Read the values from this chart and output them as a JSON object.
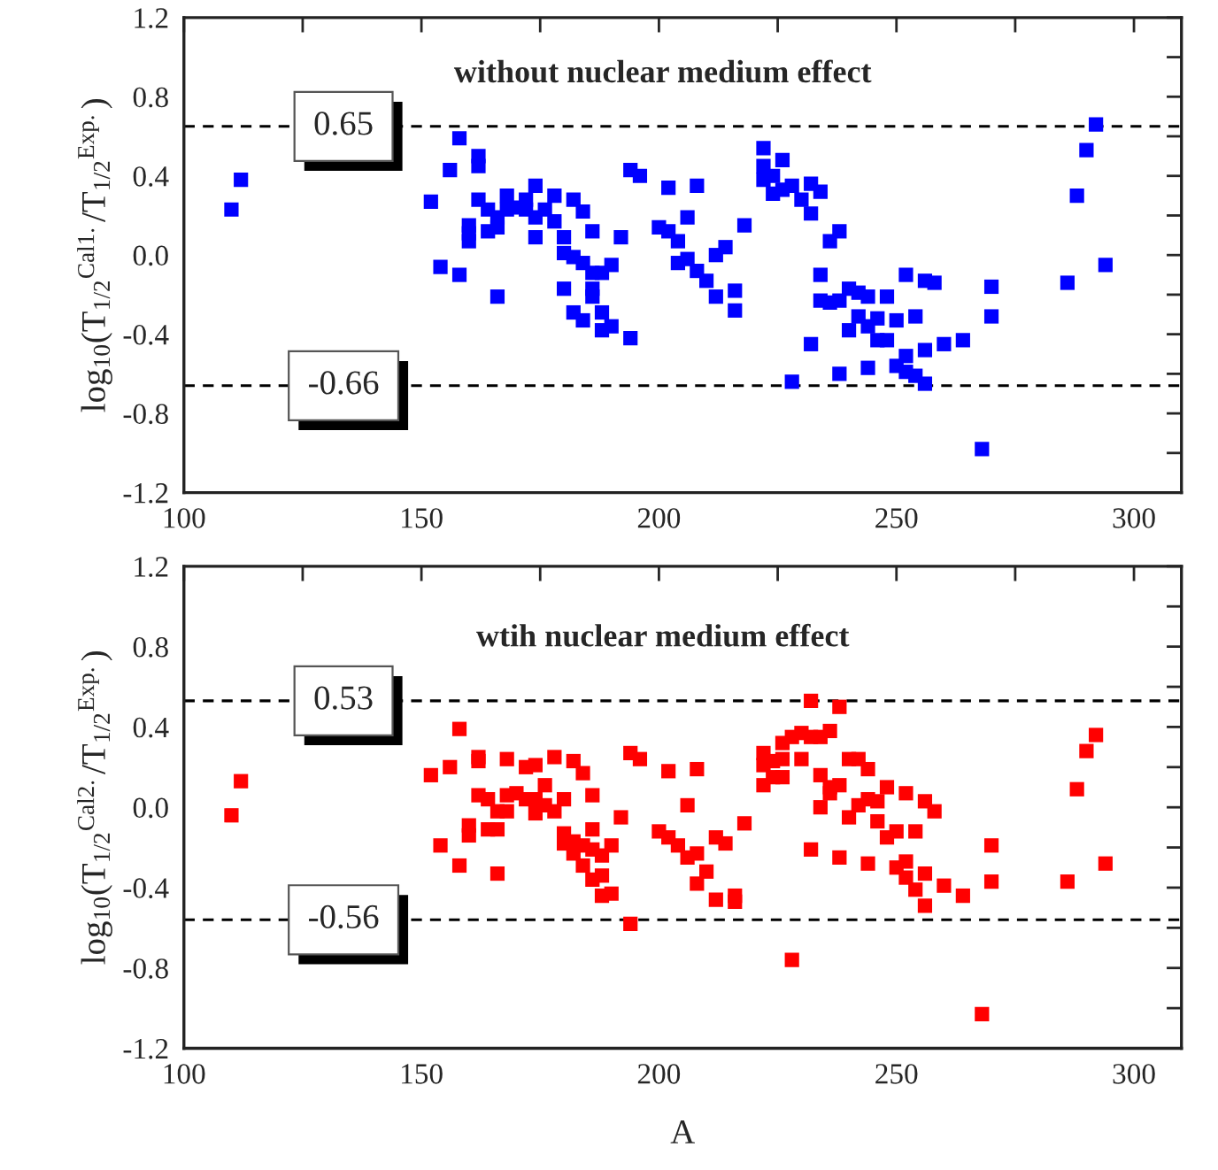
{
  "chart_data": [
    {
      "type": "scatter",
      "title": "without nuclear medium effect",
      "ylabel": "log$_{10}$(T$_{1/2}$$^{Cal1.}$/T$_{1/2}$$^{Exp.}$)",
      "marker": "square",
      "xlim": [
        100,
        310
      ],
      "xticks": [
        100,
        {
          "value": 125,
          "label": null
        },
        150,
        {
          "value": 175,
          "label": null
        },
        200,
        {
          "value": 225,
          "label": null
        },
        250,
        {
          "value": 275,
          "label": null
        },
        300
      ],
      "ylim": [
        -1.2,
        1.2
      ],
      "yticks": [
        -1.2,
        {
          "value": -1.0,
          "label": null
        },
        -0.8,
        {
          "value": -0.6,
          "label": null
        },
        -0.4,
        {
          "value": -0.2,
          "label": null
        },
        {
          "value": 0,
          "label": "0.0"
        },
        {
          "value": 0.2,
          "label": null
        },
        0.4,
        {
          "value": 0.6,
          "label": null
        },
        0.8,
        {
          "value": 1.0,
          "label": null
        },
        1.2
      ],
      "ref_lines": [
        {
          "axis": "y",
          "value": 0.65,
          "label": "0.65",
          "color": "#000000",
          "line_style": "dashed"
        },
        {
          "axis": "y",
          "value": -0.66,
          "label": "-0.66",
          "color": "#000000",
          "line_style": "dashed"
        }
      ],
      "series": [
        {
          "color": "#0000ff",
          "x": [
            110,
            112,
            152,
            154,
            156,
            158,
            158,
            162,
            162,
            162,
            160,
            160,
            160,
            164,
            164,
            166,
            166,
            166,
            168,
            168,
            170,
            172,
            172,
            174,
            174,
            174,
            176,
            178,
            178,
            180,
            180,
            180,
            182,
            182,
            182,
            184,
            184,
            184,
            186,
            186,
            186,
            186,
            188,
            188,
            188,
            190,
            190,
            192,
            194,
            194,
            196,
            200,
            202,
            202,
            204,
            204,
            206,
            206,
            208,
            208,
            210,
            212,
            212,
            214,
            216,
            216,
            218,
            222,
            222,
            222,
            224,
            224,
            226,
            226,
            228,
            230,
            232,
            232,
            234,
            236,
            238,
            234,
            234,
            236,
            238,
            240,
            242,
            242,
            244,
            244,
            246,
            246,
            248,
            248,
            250,
            240,
            232,
            228,
            238,
            244,
            252,
            254,
            250,
            252,
            252,
            254,
            256,
            258,
            256,
            256,
            260,
            264,
            268,
            270,
            270,
            286,
            288,
            290,
            292,
            294
          ],
          "values": [
            0.23,
            0.38,
            0.27,
            -0.06,
            0.43,
            0.59,
            -0.1,
            0.5,
            0.45,
            0.28,
            0.15,
            0.11,
            0.07,
            0.23,
            0.12,
            -0.21,
            0.14,
            0.19,
            0.3,
            0.23,
            0.24,
            0.28,
            0.23,
            0.35,
            0.19,
            0.09,
            0.23,
            0.3,
            0.17,
            0.09,
            0.01,
            -0.17,
            0.28,
            -0.01,
            -0.29,
            0.22,
            -0.04,
            -0.33,
            0.12,
            -0.09,
            -0.17,
            -0.21,
            -0.09,
            -0.29,
            -0.38,
            -0.05,
            -0.36,
            0.09,
            0.43,
            -0.42,
            0.4,
            0.14,
            0.34,
            0.12,
            0.07,
            -0.04,
            0.19,
            -0.02,
            0.35,
            -0.08,
            -0.13,
            0.0,
            -0.21,
            0.04,
            -0.18,
            -0.28,
            0.15,
            0.54,
            0.45,
            0.38,
            0.4,
            0.31,
            0.48,
            0.33,
            0.35,
            0.28,
            0.36,
            0.21,
            0.32,
            0.07,
            0.12,
            -0.1,
            -0.23,
            -0.24,
            -0.23,
            -0.17,
            -0.19,
            -0.31,
            -0.21,
            -0.36,
            -0.32,
            -0.43,
            -0.21,
            -0.43,
            -0.33,
            -0.38,
            -0.45,
            -0.64,
            -0.6,
            -0.57,
            -0.1,
            -0.31,
            -0.56,
            -0.51,
            -0.59,
            -0.61,
            -0.13,
            -0.14,
            -0.48,
            -0.65,
            -0.45,
            -0.43,
            -0.98,
            -0.16,
            -0.31,
            -0.14,
            0.3,
            0.53,
            0.66,
            -0.05
          ]
        }
      ]
    },
    {
      "type": "scatter",
      "title": "wtih nuclear medium effect",
      "xlabel": "A",
      "ylabel": "log$_{10}$(T$_{1/2}$$^{Cal2.}$/T$_{1/2}$$^{Exp.}$)",
      "marker": "square",
      "xlim": [
        100,
        310
      ],
      "xticks": [
        100,
        {
          "value": 125,
          "label": null
        },
        150,
        {
          "value": 175,
          "label": null
        },
        200,
        {
          "value": 225,
          "label": null
        },
        250,
        {
          "value": 275,
          "label": null
        },
        300
      ],
      "ylim": [
        -1.2,
        1.2
      ],
      "yticks": [
        -1.2,
        {
          "value": -1.0,
          "label": null
        },
        -0.8,
        {
          "value": -0.6,
          "label": null
        },
        -0.4,
        {
          "value": -0.2,
          "label": null
        },
        {
          "value": 0,
          "label": "0.0"
        },
        {
          "value": 0.2,
          "label": null
        },
        0.4,
        {
          "value": 0.6,
          "label": null
        },
        0.8,
        {
          "value": 1.0,
          "label": null
        },
        1.2
      ],
      "ref_lines": [
        {
          "axis": "y",
          "value": 0.53,
          "label": "0.53",
          "color": "#000000",
          "line_style": "dashed"
        },
        {
          "axis": "y",
          "value": -0.56,
          "label": "-0.56",
          "color": "#000000",
          "line_style": "dashed"
        }
      ],
      "series": [
        {
          "color": "#ff0000",
          "x": [
            110,
            112,
            152,
            154,
            156,
            158,
            158,
            160,
            160,
            162,
            162,
            162,
            164,
            164,
            166,
            166,
            166,
            168,
            168,
            168,
            170,
            172,
            172,
            174,
            174,
            174,
            176,
            176,
            178,
            178,
            180,
            180,
            180,
            182,
            182,
            182,
            184,
            184,
            184,
            186,
            186,
            186,
            186,
            188,
            188,
            188,
            190,
            190,
            192,
            194,
            194,
            196,
            200,
            202,
            202,
            204,
            206,
            206,
            208,
            208,
            208,
            210,
            212,
            212,
            214,
            216,
            216,
            218,
            222,
            222,
            222,
            224,
            224,
            226,
            226,
            226,
            228,
            230,
            230,
            232,
            232,
            232,
            234,
            234,
            234,
            236,
            236,
            236,
            238,
            238,
            238,
            240,
            240,
            242,
            242,
            244,
            244,
            244,
            246,
            246,
            248,
            248,
            250,
            250,
            252,
            252,
            252,
            254,
            254,
            256,
            256,
            256,
            258,
            260,
            264,
            228,
            268,
            270,
            270,
            286,
            288,
            290,
            292,
            294
          ],
          "values": [
            -0.04,
            0.13,
            0.16,
            -0.19,
            0.2,
            0.39,
            -0.29,
            -0.09,
            -0.14,
            0.25,
            0.23,
            0.06,
            0.04,
            -0.11,
            -0.11,
            -0.02,
            -0.33,
            0.24,
            0.06,
            -0.02,
            0.07,
            0.2,
            0.04,
            0.21,
            0.04,
            -0.03,
            0.11,
            0.01,
            0.25,
            -0.02,
            0.04,
            -0.13,
            -0.18,
            0.23,
            -0.17,
            -0.23,
            0.17,
            -0.19,
            -0.29,
            0.06,
            -0.11,
            -0.21,
            -0.36,
            -0.24,
            -0.34,
            -0.44,
            -0.19,
            -0.43,
            -0.05,
            0.27,
            -0.58,
            0.24,
            -0.12,
            0.18,
            -0.15,
            -0.19,
            0.01,
            -0.25,
            0.19,
            -0.23,
            -0.38,
            -0.32,
            -0.15,
            -0.46,
            -0.18,
            -0.44,
            -0.47,
            -0.08,
            0.27,
            0.21,
            0.11,
            0.23,
            0.15,
            0.32,
            0.24,
            0.15,
            0.35,
            0.37,
            0.24,
            0.53,
            0.35,
            -0.21,
            0.35,
            0.16,
            0.0,
            0.38,
            0.1,
            0.07,
            0.5,
            0.11,
            -0.25,
            0.24,
            -0.05,
            0.24,
            0.01,
            0.19,
            0.04,
            -0.28,
            0.03,
            -0.07,
            0.1,
            -0.15,
            -0.12,
            -0.3,
            0.07,
            -0.27,
            -0.35,
            -0.12,
            -0.41,
            0.03,
            -0.33,
            -0.49,
            -0.02,
            -0.39,
            -0.44,
            -0.76,
            -1.03,
            -0.19,
            -0.37,
            -0.37,
            0.09,
            0.28,
            0.36,
            -0.28
          ]
        }
      ]
    }
  ]
}
